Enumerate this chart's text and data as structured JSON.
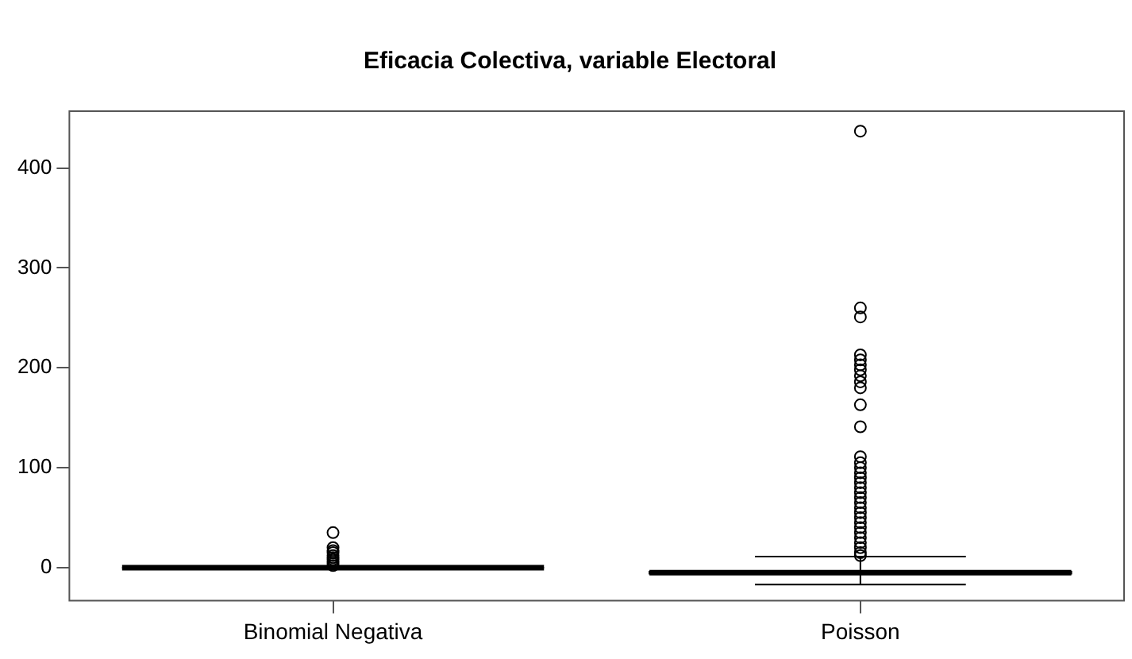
{
  "chart_data": {
    "type": "box",
    "title": "Eficacia Colectiva, variable Electoral",
    "categories": [
      "Binomial Negativa",
      "Poisson"
    ],
    "boxes": [
      {
        "low": 0,
        "q1": 0,
        "median": 0,
        "q3": 0,
        "high": 0,
        "outliers": [
          35,
          20,
          17,
          15,
          12,
          10,
          8,
          6,
          4,
          2
        ]
      },
      {
        "low": -17,
        "q1": -6,
        "median": -5,
        "q3": -4,
        "high": 11,
        "outliers": [
          437,
          260,
          251,
          213,
          208,
          203,
          198,
          192,
          186,
          180,
          163,
          141,
          111,
          105,
          100,
          95,
          90,
          85,
          80,
          75,
          70,
          65,
          60,
          55,
          50,
          45,
          40,
          35,
          30,
          25,
          20,
          15,
          12
        ]
      }
    ],
    "color": "#000000",
    "ylim": [
      -33,
      457
    ],
    "yticks": [
      0,
      100,
      200,
      300,
      400
    ],
    "grid": false,
    "legend": false,
    "marker": "circle"
  }
}
